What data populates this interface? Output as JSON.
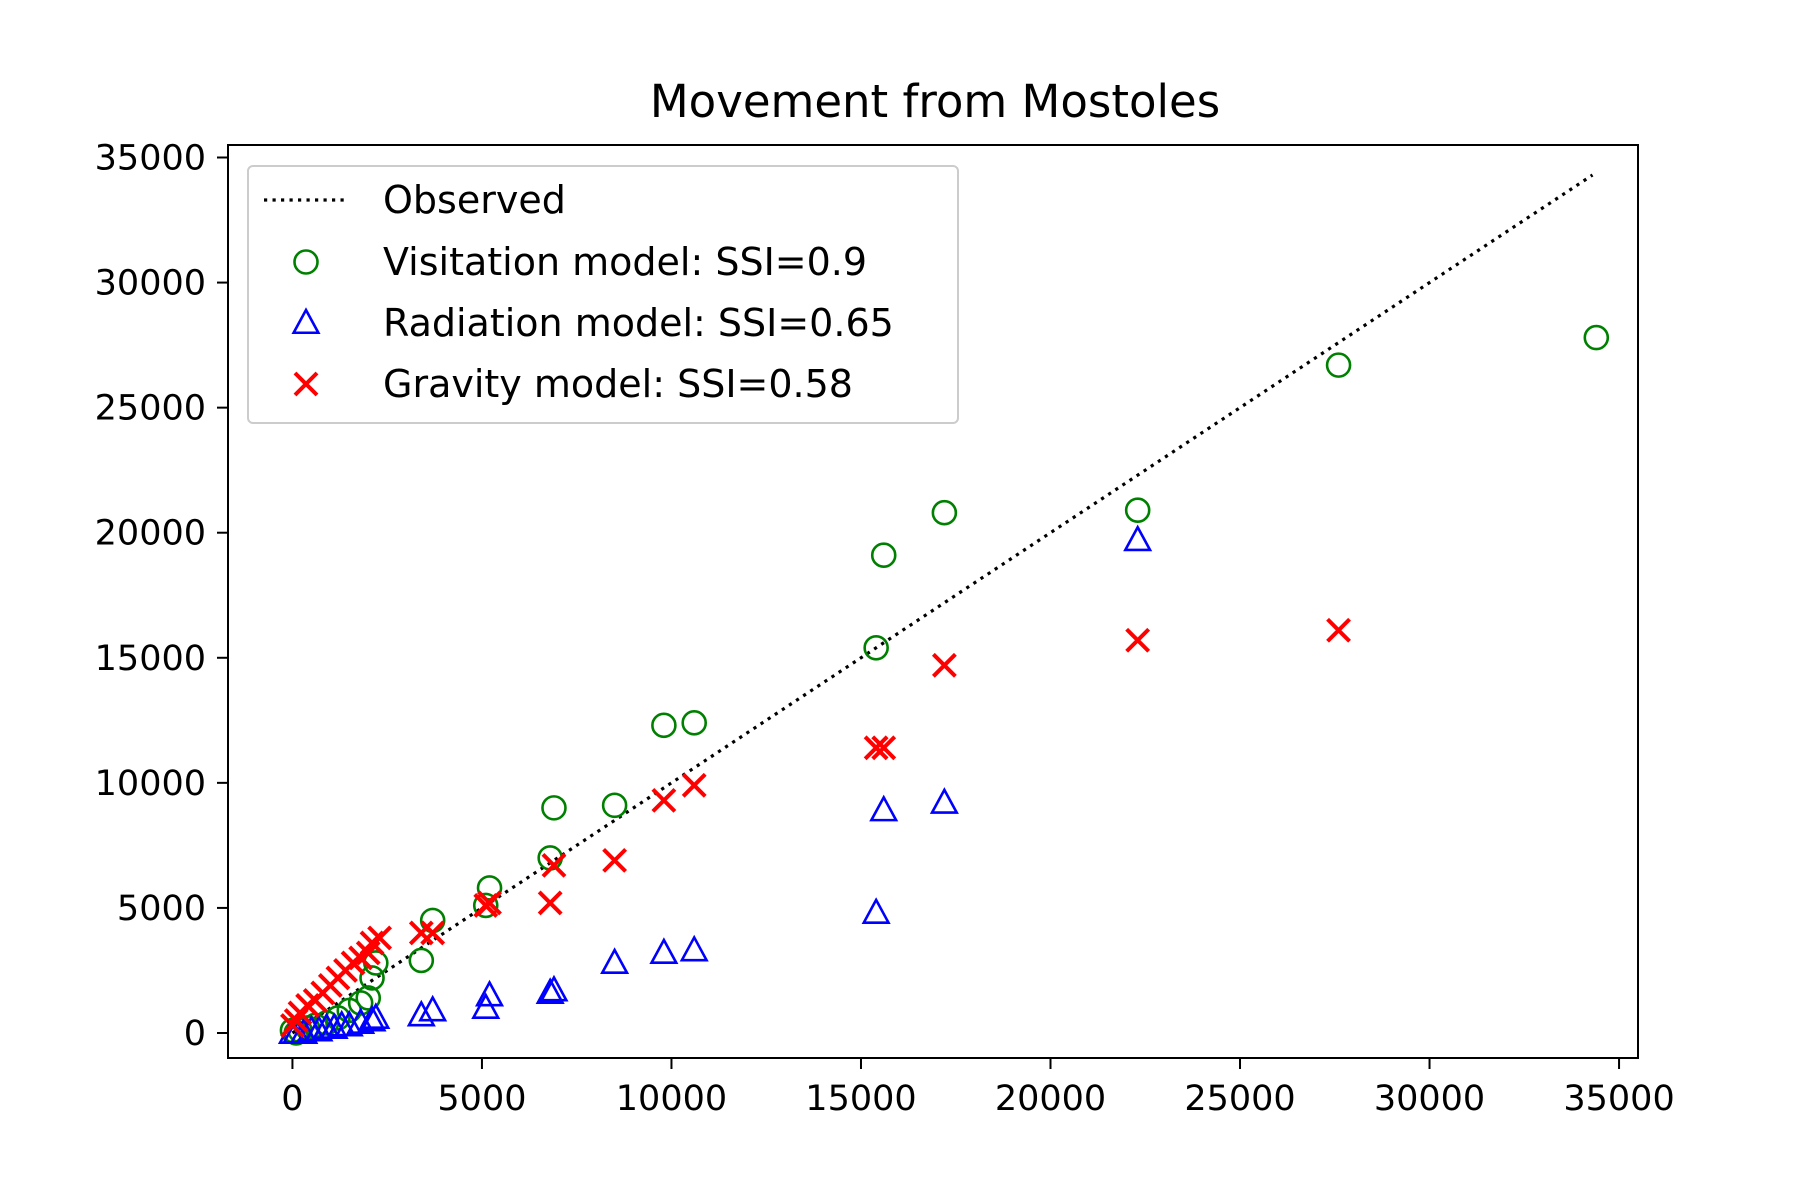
{
  "chart_data": {
    "type": "scatter",
    "title": "Movement from Mostoles",
    "xlabel": "",
    "ylabel": "",
    "xlim": [
      -1700,
      35500
    ],
    "ylim": [
      -1000,
      35500
    ],
    "xticks": [
      0,
      5000,
      10000,
      15000,
      20000,
      25000,
      30000,
      35000
    ],
    "yticks": [
      0,
      5000,
      10000,
      15000,
      20000,
      25000,
      30000,
      35000
    ],
    "grid": false,
    "legend_position": "top-left",
    "observed_line": {
      "name": "Observed",
      "color": "#000000",
      "style": "dotted",
      "x": [
        0,
        34300
      ],
      "y": [
        0,
        34300
      ]
    },
    "series": [
      {
        "name": "Visitation model: SSI=0.9",
        "marker": "circle-open",
        "color": "#008000",
        "x": [
          34400,
          27600,
          22300,
          17200,
          15600,
          15400,
          10600,
          9800,
          8500,
          6900,
          6800,
          5200,
          5100,
          3700,
          3400,
          2200,
          2100,
          2000,
          1800,
          1500,
          1200,
          900,
          600,
          400,
          200,
          100,
          0
        ],
        "y": [
          27800,
          26700,
          20900,
          20800,
          19100,
          15400,
          12400,
          12300,
          9100,
          9000,
          7000,
          5800,
          5100,
          4500,
          2900,
          2800,
          2200,
          1400,
          1200,
          900,
          600,
          400,
          300,
          200,
          100,
          0,
          100
        ]
      },
      {
        "name": "Radiation model: SSI=0.65",
        "marker": "triangle-open",
        "color": "#0000ff",
        "x": [
          22300,
          17200,
          15600,
          15400,
          10600,
          9800,
          8500,
          6900,
          6800,
          5200,
          5100,
          3700,
          3400,
          2200,
          2100,
          1800,
          1500,
          1300,
          1100,
          900,
          700,
          500,
          300,
          100,
          0
        ],
        "y": [
          19700,
          9200,
          8900,
          4800,
          3300,
          3200,
          2800,
          1700,
          1600,
          1500,
          1000,
          900,
          700,
          600,
          500,
          400,
          300,
          300,
          200,
          200,
          100,
          100,
          0,
          0,
          0
        ]
      },
      {
        "name": "Gravity model: SSI=0.58",
        "marker": "x",
        "color": "#ff0000",
        "x": [
          27600,
          22300,
          17200,
          15600,
          15400,
          10600,
          9800,
          8500,
          6900,
          6800,
          5200,
          5100,
          3700,
          3400,
          2300,
          2100,
          2000,
          1800,
          1600,
          1400,
          1200,
          1000,
          800,
          600,
          400,
          200,
          100,
          0
        ],
        "y": [
          16100,
          15700,
          14700,
          11400,
          11400,
          9900,
          9300,
          6900,
          6700,
          5200,
          5200,
          5100,
          4000,
          4000,
          3800,
          3600,
          3200,
          3000,
          2800,
          2500,
          2200,
          1900,
          1600,
          1300,
          1100,
          800,
          500,
          300
        ]
      }
    ]
  }
}
